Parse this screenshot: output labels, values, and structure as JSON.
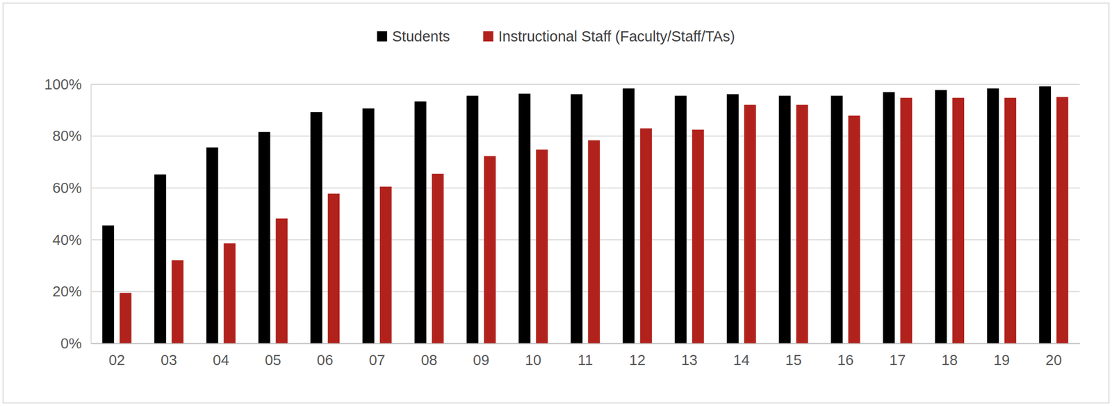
{
  "chart_data": {
    "type": "bar",
    "categories": [
      "02",
      "03",
      "04",
      "05",
      "06",
      "07",
      "08",
      "09",
      "10",
      "11",
      "12",
      "13",
      "14",
      "15",
      "16",
      "17",
      "18",
      "19",
      "20"
    ],
    "series": [
      {
        "name": "Students",
        "color": "#000000",
        "values": [
          45.5,
          65.2,
          75.6,
          81.6,
          89.3,
          90.7,
          93.4,
          95.6,
          96.4,
          96.2,
          98.4,
          95.6,
          96.2,
          95.6,
          95.6,
          97.0,
          97.8,
          98.4,
          99.2
        ]
      },
      {
        "name": "Instructional Staff (Faculty/Staff/TAs)",
        "color": "#b2221d",
        "values": [
          19.5,
          32.1,
          38.6,
          48.2,
          57.8,
          60.5,
          65.5,
          72.3,
          74.8,
          78.4,
          83.0,
          82.5,
          92.1,
          92.1,
          87.9,
          94.8,
          94.8,
          94.8,
          95.1
        ]
      }
    ],
    "ylim": [
      0,
      100
    ],
    "yticks": [
      {
        "value": 0,
        "label": "0%"
      },
      {
        "value": 20,
        "label": "20%"
      },
      {
        "value": 40,
        "label": "40%"
      },
      {
        "value": 60,
        "label": "60%"
      },
      {
        "value": 80,
        "label": "80%"
      },
      {
        "value": 100,
        "label": "100%"
      }
    ],
    "grid": true,
    "legend": "top"
  }
}
